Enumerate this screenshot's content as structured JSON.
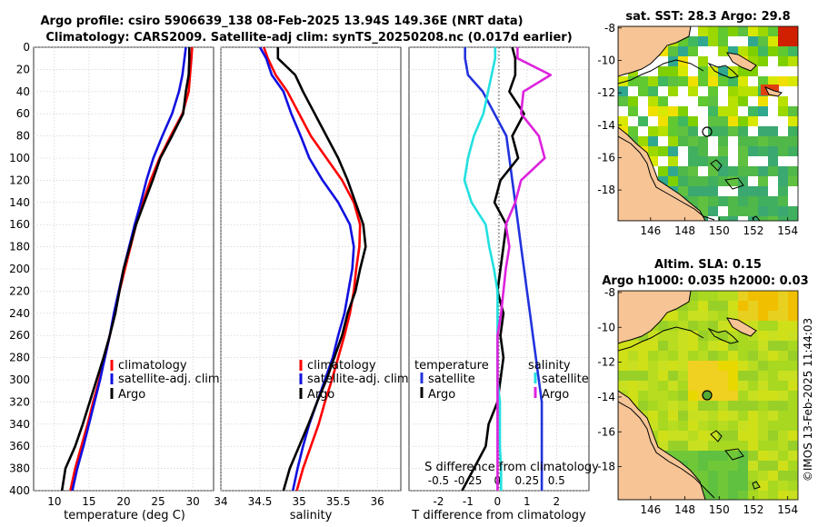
{
  "figure": {
    "title_line1": "Argo profile: csiro 5906639_138 08-Feb-2025 13.94S 149.36E (NRT data)",
    "title_line2": "Climatology: CARS2009. Satellite-adj clim: synTS_20250208.nc (0.017d earlier)",
    "timestamp": "©IMOS 13-Feb-2025 11:44:03"
  },
  "colors": {
    "climatology": "#ff0000",
    "satellite": "#1010e0",
    "argo": "#000000",
    "temp_diff": "#2233dd",
    "sal_diff": "#dd22dd",
    "sal_diff_sat": "#22e0e0",
    "land": "#f6c495",
    "grid": "#c8c8c8"
  },
  "chart_data": [
    {
      "id": "temperature",
      "type": "line",
      "xlabel": "temperature (deg C)",
      "ylabel": "",
      "xlim": [
        7,
        33
      ],
      "ylim": [
        400,
        0
      ],
      "xticks": [
        10,
        15,
        20,
        25,
        30
      ],
      "xtick_labels": [
        "10",
        "15",
        "20",
        "25",
        "30"
      ],
      "yticks": [
        0,
        20,
        40,
        60,
        80,
        100,
        120,
        140,
        160,
        180,
        200,
        220,
        240,
        260,
        280,
        300,
        320,
        340,
        360,
        380,
        400
      ],
      "ytick_labels": [
        "0",
        "20",
        "40",
        "60",
        "80",
        "100",
        "120",
        "140",
        "160",
        "180",
        "200",
        "220",
        "240",
        "260",
        "280",
        "300",
        "320",
        "340",
        "360",
        "380",
        "400"
      ],
      "legend": [
        "climatology",
        "satellite-adj. clim",
        "Argo"
      ],
      "legend_position": "lower-right",
      "series": [
        {
          "name": "climatology",
          "color": "#ff0000",
          "x": [
            29.9,
            29.8,
            29.6,
            29.4,
            28.5,
            26.8,
            25.2,
            23.9,
            22.8,
            21.8,
            21.0,
            20.2,
            19.4,
            18.7,
            18.0,
            17.3,
            16.5,
            15.6,
            14.8,
            13.9,
            13.0,
            12.3
          ],
          "y": [
            0,
            10,
            25,
            40,
            60,
            80,
            100,
            120,
            140,
            160,
            180,
            200,
            220,
            240,
            260,
            280,
            300,
            320,
            340,
            360,
            380,
            400
          ]
        },
        {
          "name": "satellite-adj. clim",
          "color": "#1010e0",
          "x": [
            29.0,
            28.8,
            28.5,
            28.0,
            27.0,
            25.6,
            24.3,
            23.3,
            22.5,
            21.6,
            20.8,
            20.0,
            19.3,
            18.6,
            18.0,
            17.3,
            16.6,
            15.8,
            15.0,
            14.2,
            13.3,
            12.6
          ],
          "y": [
            0,
            10,
            25,
            40,
            60,
            80,
            100,
            120,
            140,
            160,
            180,
            200,
            220,
            240,
            260,
            280,
            300,
            320,
            340,
            360,
            380,
            400
          ]
        },
        {
          "name": "Argo",
          "color": "#000000",
          "x": [
            29.5,
            29.5,
            29.4,
            29.0,
            28.6,
            27.0,
            25.3,
            24.2,
            23.0,
            21.8,
            20.9,
            20.0,
            19.4,
            18.8,
            18.0,
            17.1,
            16.1,
            15.1,
            14.1,
            13.0,
            11.6,
            11.1
          ],
          "y": [
            0,
            10,
            25,
            40,
            60,
            80,
            100,
            120,
            140,
            160,
            180,
            200,
            220,
            240,
            260,
            280,
            300,
            320,
            340,
            360,
            380,
            400
          ]
        }
      ]
    },
    {
      "id": "salinity",
      "type": "line",
      "xlabel": "salinity",
      "ylabel": "",
      "xlim": [
        34,
        36.3
      ],
      "ylim": [
        400,
        0
      ],
      "xticks": [
        34,
        34.5,
        35,
        35.5,
        36
      ],
      "xtick_labels": [
        "34",
        "34.5",
        "35",
        "35.5",
        "36"
      ],
      "legend": [
        "climatology",
        "satellite-adj. clim",
        "Argo"
      ],
      "legend_position": "lower-right",
      "series": [
        {
          "name": "climatology",
          "color": "#ff0000",
          "x": [
            34.55,
            34.6,
            34.7,
            34.85,
            35.0,
            35.15,
            35.35,
            35.55,
            35.7,
            35.78,
            35.77,
            35.73,
            35.7,
            35.65,
            35.58,
            35.5,
            35.42,
            35.33,
            35.25,
            35.15,
            35.05,
            34.97
          ],
          "y": [
            0,
            10,
            25,
            40,
            60,
            80,
            100,
            120,
            140,
            160,
            180,
            200,
            220,
            240,
            260,
            280,
            300,
            320,
            340,
            360,
            380,
            400
          ]
        },
        {
          "name": "satellite-adj. clim",
          "color": "#1010e0",
          "x": [
            34.5,
            34.58,
            34.65,
            34.8,
            34.9,
            35.02,
            35.13,
            35.3,
            35.5,
            35.65,
            35.7,
            35.68,
            35.63,
            35.58,
            35.5,
            35.43,
            35.33,
            35.23,
            35.13,
            35.05,
            34.98,
            34.92
          ],
          "y": [
            0,
            10,
            25,
            40,
            60,
            80,
            100,
            120,
            140,
            160,
            180,
            200,
            220,
            240,
            260,
            280,
            300,
            320,
            340,
            360,
            380,
            400
          ]
        },
        {
          "name": "Argo",
          "color": "#000000",
          "x": [
            34.73,
            34.73,
            34.95,
            35.05,
            35.2,
            35.35,
            35.5,
            35.62,
            35.72,
            35.82,
            35.85,
            35.78,
            35.72,
            35.62,
            35.55,
            35.45,
            35.35,
            35.23,
            35.12,
            35.0,
            34.88,
            34.8
          ],
          "y": [
            0,
            10,
            25,
            40,
            60,
            80,
            100,
            120,
            140,
            160,
            180,
            200,
            220,
            240,
            260,
            280,
            300,
            320,
            340,
            360,
            380,
            400
          ]
        }
      ]
    },
    {
      "id": "differences",
      "type": "line",
      "xlabel": "T difference from climatology",
      "top_axis_label": "S difference from climatology",
      "xlim": [
        -3,
        3.1
      ],
      "ylim": [
        400,
        0
      ],
      "xticks": [
        -2,
        -1,
        0,
        1,
        2
      ],
      "xtick_labels": [
        "-2",
        "-1",
        "0",
        "1",
        "2"
      ],
      "s_ticks": [
        -0.5,
        -0.25,
        0,
        0.25,
        0.5
      ],
      "s_tick_labels": [
        "-0.5",
        "-0.25",
        "0",
        "0.25",
        "0.5"
      ],
      "s_xlim": [
        -0.75,
        0.775
      ],
      "legend_temperature": {
        "heading": "temperature",
        "entries": [
          "satellite",
          "Argo"
        ]
      },
      "legend_salinity": {
        "heading": "salinity",
        "entries": [
          "satellite",
          "Argo"
        ]
      },
      "series": [
        {
          "name": "temperature satellite",
          "color": "#2233dd",
          "scale": "T",
          "x": [
            -1.1,
            -1.1,
            -1.0,
            -0.5,
            -0.1,
            0.3,
            0.4,
            0.5,
            0.6,
            0.7,
            0.8,
            0.9,
            1.0,
            1.1,
            1.2,
            1.3,
            1.4,
            1.5,
            1.5,
            1.5,
            1.5,
            1.5
          ],
          "y": [
            0,
            10,
            25,
            40,
            60,
            80,
            100,
            120,
            140,
            160,
            180,
            200,
            220,
            240,
            260,
            280,
            300,
            320,
            340,
            360,
            380,
            400
          ]
        },
        {
          "name": "temperature Argo",
          "color": "#000000",
          "scale": "T",
          "x": [
            0.5,
            0.6,
            0.6,
            0.4,
            0.9,
            0.5,
            0.7,
            0.1,
            -0.1,
            0.3,
            0.2,
            0.1,
            0.0,
            0.2,
            0.1,
            0.2,
            0.1,
            0.0,
            -0.3,
            -0.4,
            -0.8,
            -1.2
          ],
          "y": [
            0,
            10,
            25,
            40,
            60,
            80,
            100,
            120,
            140,
            160,
            180,
            200,
            220,
            240,
            260,
            280,
            300,
            320,
            340,
            360,
            380,
            400
          ]
        },
        {
          "name": "salinity satellite",
          "color": "#22e0e0",
          "scale": "S",
          "x": [
            -0.02,
            -0.02,
            -0.05,
            -0.08,
            -0.12,
            -0.2,
            -0.25,
            -0.28,
            -0.22,
            -0.1,
            -0.07,
            -0.03,
            0.0,
            0.0,
            0.0,
            0.0,
            0.0,
            0.02,
            0.02,
            0.02,
            0.03,
            0.03
          ],
          "y": [
            0,
            10,
            25,
            40,
            60,
            80,
            100,
            120,
            140,
            160,
            180,
            200,
            220,
            240,
            260,
            280,
            300,
            320,
            340,
            360,
            380,
            400
          ]
        },
        {
          "name": "salinity Argo",
          "color": "#dd22dd",
          "scale": "S",
          "x": [
            0.17,
            0.17,
            0.45,
            0.22,
            0.2,
            0.35,
            0.4,
            0.2,
            0.15,
            0.07,
            0.1,
            0.07,
            0.05,
            0.03,
            0.0,
            0.0,
            0.0,
            0.0,
            0.0,
            0.0,
            0.0,
            0.0
          ],
          "y": [
            0,
            10,
            25,
            40,
            60,
            80,
            100,
            120,
            140,
            160,
            180,
            200,
            220,
            240,
            260,
            280,
            300,
            320,
            340,
            360,
            380,
            400
          ]
        }
      ]
    },
    {
      "id": "sst_map",
      "type": "heatmap",
      "title": "sat. SST: 28.3 Argo: 29.8",
      "xlim": [
        144.1,
        154.6
      ],
      "ylim": [
        -19.9,
        -7.9
      ],
      "xticks": [
        146,
        148,
        150,
        152,
        154
      ],
      "xtick_labels": [
        "146",
        "148",
        "150",
        "152",
        "154"
      ],
      "yticks": [
        -8,
        -10,
        -12,
        -14,
        -16,
        -18
      ],
      "ytick_labels": [
        "-8",
        "-10",
        "-12",
        "-14",
        "-16",
        "-18"
      ],
      "float_position": [
        149.36,
        -13.94
      ]
    },
    {
      "id": "sla_map",
      "type": "heatmap",
      "title_line1": "Altim. SLA: 0.15",
      "title_line2": "Argo h1000: 0.035 h2000: 0.03",
      "xlim": [
        144.1,
        154.6
      ],
      "ylim": [
        -19.9,
        -7.9
      ],
      "xticks": [
        146,
        148,
        150,
        152,
        154
      ],
      "xtick_labels": [
        "146",
        "148",
        "150",
        "152",
        "154"
      ],
      "yticks": [
        -8,
        -10,
        -12,
        -14,
        -16,
        -18
      ],
      "ytick_labels": [
        "-8",
        "-10",
        "-12",
        "-14",
        "-16",
        "-18"
      ],
      "float_position": [
        149.36,
        -13.94
      ]
    }
  ]
}
